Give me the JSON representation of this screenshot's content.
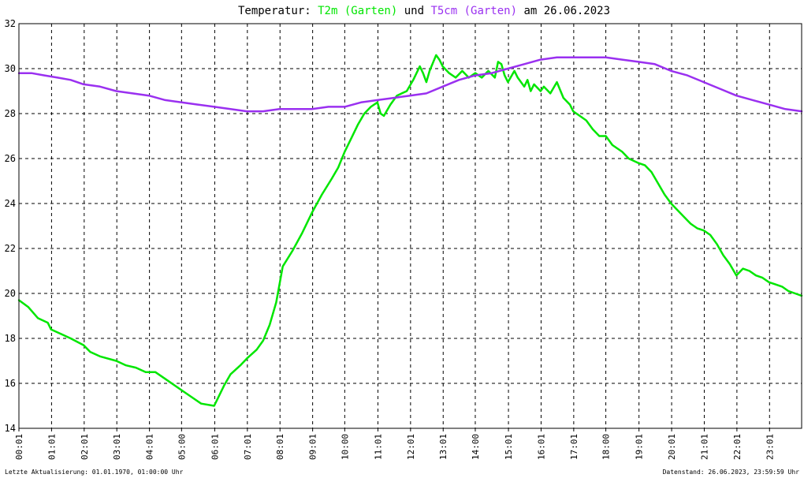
{
  "chart_data": {
    "type": "line",
    "title": {
      "prefix": "Temperatur: ",
      "series1_label": "T2m (Garten)",
      "middle": " und ",
      "series2_label": "T5cm (Garten)",
      "suffix": " am 26.06.2023"
    },
    "ylim": [
      14,
      32
    ],
    "yticks": [
      "14",
      "16",
      "18",
      "20",
      "22",
      "24",
      "26",
      "28",
      "30",
      "32"
    ],
    "xlim": [
      0.0167,
      24.0
    ],
    "xticks": [
      "00:01",
      "01:01",
      "02:01",
      "03:01",
      "04:01",
      "05:00",
      "06:01",
      "07:01",
      "08:01",
      "09:01",
      "10:00",
      "11:01",
      "12:01",
      "13:01",
      "14:00",
      "15:01",
      "16:01",
      "17:01",
      "18:00",
      "19:01",
      "20:01",
      "21:01",
      "22:01",
      "23:01"
    ],
    "grid": true,
    "series": [
      {
        "name": "T2m (Garten)",
        "color": "#00e600",
        "points": [
          [
            0.02,
            19.7
          ],
          [
            0.3,
            19.4
          ],
          [
            0.6,
            18.9
          ],
          [
            0.9,
            18.7
          ],
          [
            1.0,
            18.4
          ],
          [
            1.3,
            18.2
          ],
          [
            1.6,
            18.0
          ],
          [
            2.0,
            17.7
          ],
          [
            2.2,
            17.4
          ],
          [
            2.5,
            17.2
          ],
          [
            3.0,
            17.0
          ],
          [
            3.3,
            16.8
          ],
          [
            3.6,
            16.7
          ],
          [
            3.9,
            16.5
          ],
          [
            4.2,
            16.5
          ],
          [
            4.5,
            16.2
          ],
          [
            5.0,
            15.7
          ],
          [
            5.3,
            15.4
          ],
          [
            5.6,
            15.1
          ],
          [
            6.0,
            15.0
          ],
          [
            6.1,
            15.3
          ],
          [
            6.3,
            15.9
          ],
          [
            6.5,
            16.4
          ],
          [
            6.8,
            16.8
          ],
          [
            7.0,
            17.1
          ],
          [
            7.3,
            17.5
          ],
          [
            7.5,
            17.9
          ],
          [
            7.7,
            18.6
          ],
          [
            7.9,
            19.6
          ],
          [
            8.1,
            21.2
          ],
          [
            8.4,
            21.9
          ],
          [
            8.7,
            22.7
          ],
          [
            9.0,
            23.6
          ],
          [
            9.3,
            24.4
          ],
          [
            9.6,
            25.1
          ],
          [
            9.8,
            25.6
          ],
          [
            10.0,
            26.3
          ],
          [
            10.2,
            26.9
          ],
          [
            10.4,
            27.5
          ],
          [
            10.6,
            28.0
          ],
          [
            10.8,
            28.3
          ],
          [
            11.0,
            28.5
          ],
          [
            11.1,
            28.0
          ],
          [
            11.2,
            27.9
          ],
          [
            11.4,
            28.4
          ],
          [
            11.6,
            28.8
          ],
          [
            11.9,
            29.0
          ],
          [
            12.1,
            29.5
          ],
          [
            12.3,
            30.1
          ],
          [
            12.4,
            29.8
          ],
          [
            12.5,
            29.4
          ],
          [
            12.6,
            29.9
          ],
          [
            12.8,
            30.6
          ],
          [
            12.9,
            30.4
          ],
          [
            13.0,
            30.1
          ],
          [
            13.2,
            29.8
          ],
          [
            13.4,
            29.6
          ],
          [
            13.6,
            29.9
          ],
          [
            13.8,
            29.6
          ],
          [
            14.0,
            29.8
          ],
          [
            14.2,
            29.6
          ],
          [
            14.4,
            29.9
          ],
          [
            14.6,
            29.6
          ],
          [
            14.7,
            30.3
          ],
          [
            14.8,
            30.2
          ],
          [
            14.9,
            29.7
          ],
          [
            15.0,
            29.4
          ],
          [
            15.2,
            29.9
          ],
          [
            15.3,
            29.6
          ],
          [
            15.5,
            29.2
          ],
          [
            15.6,
            29.5
          ],
          [
            15.7,
            29.0
          ],
          [
            15.8,
            29.3
          ],
          [
            16.0,
            29.0
          ],
          [
            16.1,
            29.2
          ],
          [
            16.3,
            28.9
          ],
          [
            16.5,
            29.4
          ],
          [
            16.7,
            28.7
          ],
          [
            16.9,
            28.4
          ],
          [
            17.0,
            28.1
          ],
          [
            17.2,
            27.9
          ],
          [
            17.4,
            27.7
          ],
          [
            17.6,
            27.3
          ],
          [
            17.8,
            27.0
          ],
          [
            18.0,
            27.0
          ],
          [
            18.2,
            26.6
          ],
          [
            18.5,
            26.3
          ],
          [
            18.7,
            26.0
          ],
          [
            19.0,
            25.8
          ],
          [
            19.2,
            25.7
          ],
          [
            19.4,
            25.4
          ],
          [
            19.6,
            24.9
          ],
          [
            19.8,
            24.4
          ],
          [
            20.0,
            24.0
          ],
          [
            20.2,
            23.7
          ],
          [
            20.4,
            23.4
          ],
          [
            20.6,
            23.1
          ],
          [
            20.8,
            22.9
          ],
          [
            21.0,
            22.8
          ],
          [
            21.2,
            22.6
          ],
          [
            21.4,
            22.2
          ],
          [
            21.6,
            21.7
          ],
          [
            21.8,
            21.3
          ],
          [
            22.0,
            20.8
          ],
          [
            22.2,
            21.1
          ],
          [
            22.4,
            21.0
          ],
          [
            22.6,
            20.8
          ],
          [
            22.8,
            20.7
          ],
          [
            23.0,
            20.5
          ],
          [
            23.2,
            20.4
          ],
          [
            23.4,
            20.3
          ],
          [
            23.6,
            20.1
          ],
          [
            23.8,
            20.0
          ],
          [
            24.0,
            19.9
          ]
        ]
      },
      {
        "name": "T5cm (Garten)",
        "color": "#9a30f0",
        "points": [
          [
            0.02,
            29.8
          ],
          [
            0.4,
            29.8
          ],
          [
            0.8,
            29.7
          ],
          [
            1.2,
            29.6
          ],
          [
            1.6,
            29.5
          ],
          [
            2.0,
            29.3
          ],
          [
            2.5,
            29.2
          ],
          [
            3.0,
            29.0
          ],
          [
            3.5,
            28.9
          ],
          [
            4.0,
            28.8
          ],
          [
            4.5,
            28.6
          ],
          [
            5.0,
            28.5
          ],
          [
            5.5,
            28.4
          ],
          [
            6.0,
            28.3
          ],
          [
            6.5,
            28.2
          ],
          [
            7.0,
            28.1
          ],
          [
            7.5,
            28.1
          ],
          [
            8.0,
            28.2
          ],
          [
            8.5,
            28.2
          ],
          [
            9.0,
            28.2
          ],
          [
            9.5,
            28.3
          ],
          [
            10.0,
            28.3
          ],
          [
            10.5,
            28.5
          ],
          [
            11.0,
            28.6
          ],
          [
            11.5,
            28.7
          ],
          [
            12.0,
            28.8
          ],
          [
            12.5,
            28.9
          ],
          [
            13.0,
            29.2
          ],
          [
            13.5,
            29.5
          ],
          [
            14.0,
            29.7
          ],
          [
            14.5,
            29.8
          ],
          [
            15.0,
            30.0
          ],
          [
            15.5,
            30.2
          ],
          [
            16.0,
            30.4
          ],
          [
            16.5,
            30.5
          ],
          [
            17.0,
            30.5
          ],
          [
            17.5,
            30.5
          ],
          [
            18.0,
            30.5
          ],
          [
            18.5,
            30.4
          ],
          [
            19.0,
            30.3
          ],
          [
            19.5,
            30.2
          ],
          [
            20.0,
            29.9
          ],
          [
            20.5,
            29.7
          ],
          [
            21.0,
            29.4
          ],
          [
            21.5,
            29.1
          ],
          [
            22.0,
            28.8
          ],
          [
            22.5,
            28.6
          ],
          [
            23.0,
            28.4
          ],
          [
            23.5,
            28.2
          ],
          [
            24.0,
            28.1
          ]
        ]
      }
    ]
  },
  "footer": {
    "left": "Letzte Aktualisierung: 01.01.1970, 01:00:00 Uhr",
    "right": "Datenstand: 26.06.2023, 23:59:59 Uhr"
  }
}
